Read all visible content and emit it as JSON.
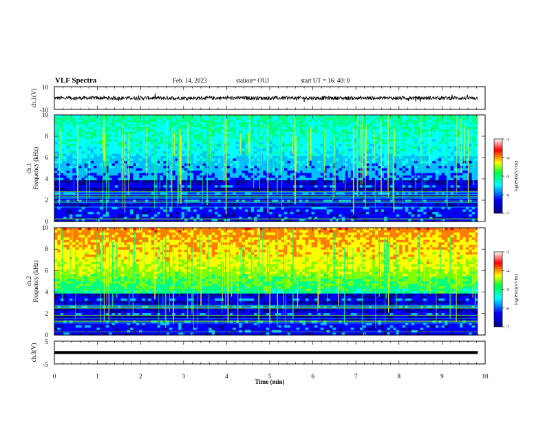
{
  "header": {
    "title": "VLF Spectra",
    "date": "Feb. 14, 2023",
    "station": "station= OUJ",
    "start": "start  UT  =   16: 40: 0"
  },
  "chart_data": [
    {
      "type": "line",
      "name_panel": "ch1-waveform",
      "ylabel": "ch.1(V)",
      "ylim": [
        -10,
        10
      ],
      "yticks": [
        "10",
        "-10"
      ],
      "xlim": [
        0,
        10
      ]
    },
    {
      "type": "heatmap",
      "name_panel": "ch1-spectrogram",
      "ylabel_top": "ch.1",
      "ylabel": "Frequency  (kHz)",
      "ylim": [
        0,
        10
      ],
      "yticks": [
        "0",
        "2",
        "4",
        "6",
        "8",
        "10"
      ],
      "colorbar": {
        "label": "log(PSD)(V²/Hz)",
        "range": [
          -7,
          -3
        ],
        "ticks": [
          "-3",
          "-4",
          "-5",
          "-6",
          "-7"
        ]
      }
    },
    {
      "type": "heatmap",
      "name_panel": "ch2-spectrogram",
      "ylabel_top": "ch.2",
      "ylabel": "Frequency  (kHz)",
      "ylim": [
        0,
        10
      ],
      "yticks": [
        "0",
        "2",
        "4",
        "6",
        "8",
        "10"
      ],
      "colorbar": {
        "label": "log(PSD)(V²/Hz)",
        "range": [
          -7,
          -3
        ],
        "ticks": [
          "-3",
          "-4",
          "-5",
          "-6",
          "-7"
        ]
      }
    },
    {
      "type": "line",
      "name_panel": "ch3-waveform",
      "ylabel": "ch.3(V)",
      "ylim": [
        -5,
        5
      ],
      "yticks": [
        "5",
        "-5"
      ],
      "xlim": [
        0,
        10
      ]
    }
  ],
  "xaxis": {
    "label": "Time  (min)",
    "ticks": [
      "0",
      "1",
      "2",
      "3",
      "4",
      "5",
      "6",
      "7",
      "8",
      "9",
      "10"
    ],
    "data_end_min": 9.83
  },
  "colormap": [
    "#000000",
    "#00008b",
    "#0000ff",
    "#00bfff",
    "#00ffff",
    "#00ff7f",
    "#7fff00",
    "#ffff00",
    "#ff7f00",
    "#ff0000",
    "#ffffff"
  ]
}
